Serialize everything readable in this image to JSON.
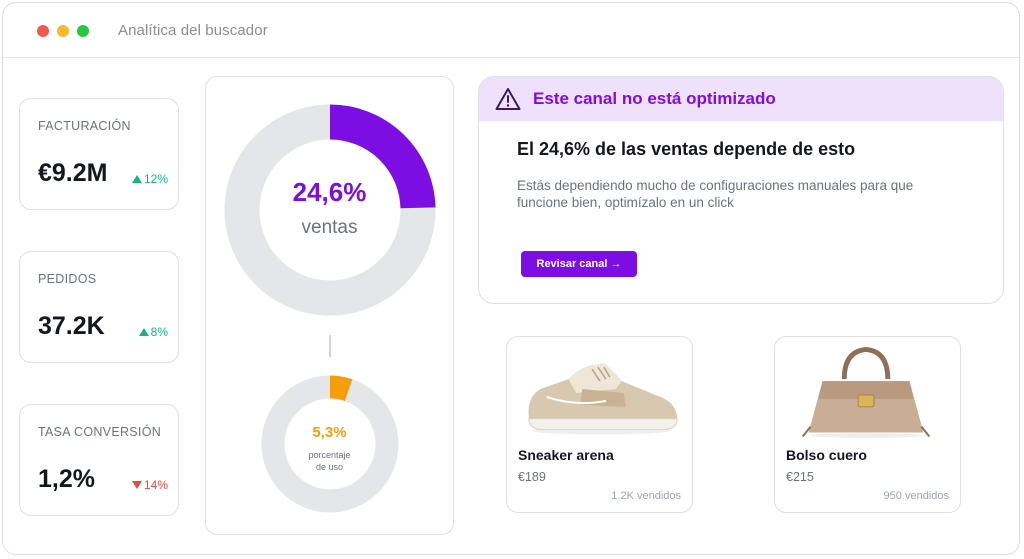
{
  "window": {
    "title": "Analítica del buscador"
  },
  "kpis": [
    {
      "label": "FACTURACIÓN",
      "value": "€9.2M",
      "delta": "12%",
      "trend": "up"
    },
    {
      "label": "PEDIDOS",
      "value": "37.2K",
      "delta": "8%",
      "trend": "up"
    },
    {
      "label": "TASA CONVERSIÓN",
      "value": "1,2%",
      "delta": "14%",
      "trend": "down"
    }
  ],
  "sales_donut": {
    "percent_label": "24,6%",
    "sub_label": "ventas",
    "fraction": 0.246
  },
  "usage_donut": {
    "percent_label": "5,3%",
    "sub_label_lines": [
      "porcentaje",
      "de uso"
    ],
    "fraction": 0.053
  },
  "alert": {
    "title": "Este canal no está optimizado",
    "heading": "El 24,6% de las ventas depende de esto",
    "body": "Estás dependiendo mucho de configuraciones manuales para que funcione bien, optimízalo en un click",
    "button_label": "Revisar canal →"
  },
  "products": [
    {
      "name": "Sneaker arena",
      "price": "€189",
      "sold": "1.2K vendidos",
      "icon": "sneaker-image"
    },
    {
      "name": "Bolso cuero",
      "price": "€215",
      "sold": "950 vendidos",
      "icon": "handbag-image"
    }
  ],
  "colors": {
    "accent": "#7c0ee3",
    "accent_light": "#efe0fc",
    "usage": "#f59e0b",
    "track": "#e5e6ea",
    "positive": "#10b981",
    "negative": "#ef4444"
  }
}
